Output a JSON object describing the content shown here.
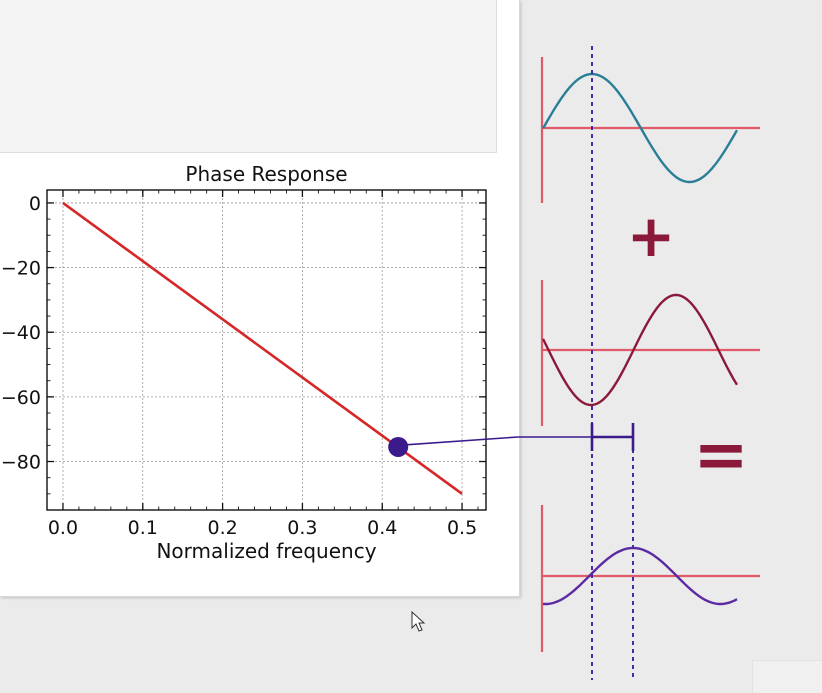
{
  "chart_data": {
    "type": "line",
    "title": "Phase Response",
    "xlabel": "Normalized frequency",
    "ylabel": "",
    "xlim": [
      -0.02,
      0.53
    ],
    "ylim": [
      -95,
      4
    ],
    "x_ticks": [
      "0.0",
      "0.1",
      "0.2",
      "0.3",
      "0.4",
      "0.5"
    ],
    "y_ticks": [
      "0",
      "−20",
      "−40",
      "−60",
      "−80"
    ],
    "grid": true,
    "series": [
      {
        "x": [
          0.0,
          0.5
        ],
        "y": [
          0,
          -90
        ],
        "color": "#d62728"
      }
    ],
    "highlight_point": {
      "x": 0.42,
      "y": -75.5,
      "color": "#3b1a8c"
    }
  },
  "illustration": {
    "symbols": {
      "plus": "+",
      "equals": "="
    },
    "colors": {
      "axis": "#e05a6a",
      "wave_top": "#2a7f96",
      "wave_middle": "#8b1a3a",
      "wave_bottom": "#5b2aa3",
      "guide_dashed": "#4b2aa8",
      "connector": "#3b1a8c"
    }
  },
  "cursor": {
    "icon": "arrow-cursor-icon"
  }
}
